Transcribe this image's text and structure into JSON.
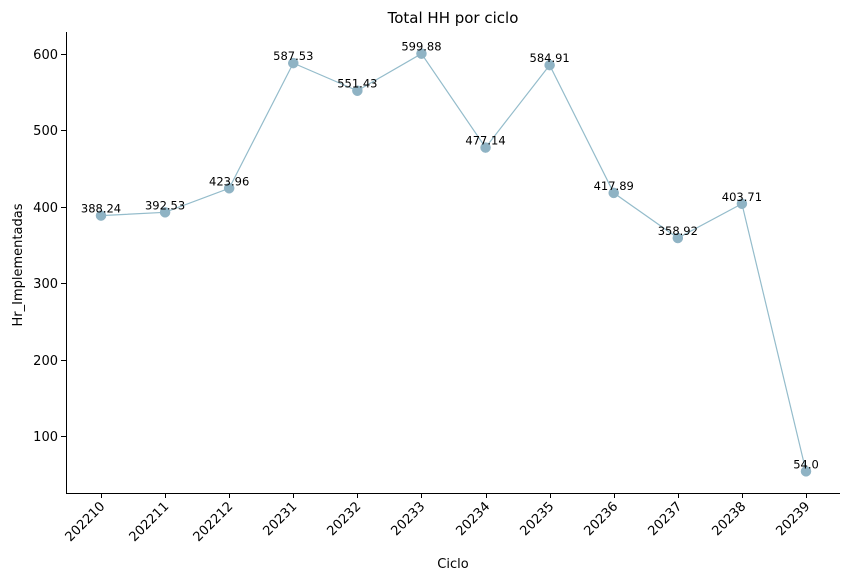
{
  "chart_data": {
    "type": "line",
    "title": "Total HH por ciclo",
    "xlabel": "Ciclo",
    "ylabel": "Hr_Implementadas",
    "categories": [
      "202210",
      "202211",
      "202212",
      "20231",
      "20232",
      "20233",
      "20234",
      "20235",
      "20236",
      "20237",
      "20238",
      "20239"
    ],
    "series": [
      {
        "values": [
          388.24,
          392.53,
          423.96,
          587.53,
          551.43,
          599.88,
          477.14,
          584.91,
          417.89,
          358.92,
          403.71,
          54.0
        ],
        "data_labels": [
          "388.24",
          "392.53",
          "423.96",
          "587.53",
          "551.43",
          "599.88",
          "477.14",
          "584.91",
          "417.89",
          "358.92",
          "403.71",
          "54.0"
        ]
      }
    ],
    "yticks": [
      100,
      200,
      300,
      400,
      500,
      600
    ],
    "ylim": [
      25.7,
      628.2
    ],
    "grid": false,
    "line_color": "#94bccb",
    "marker_color": "#8fb3c4"
  }
}
